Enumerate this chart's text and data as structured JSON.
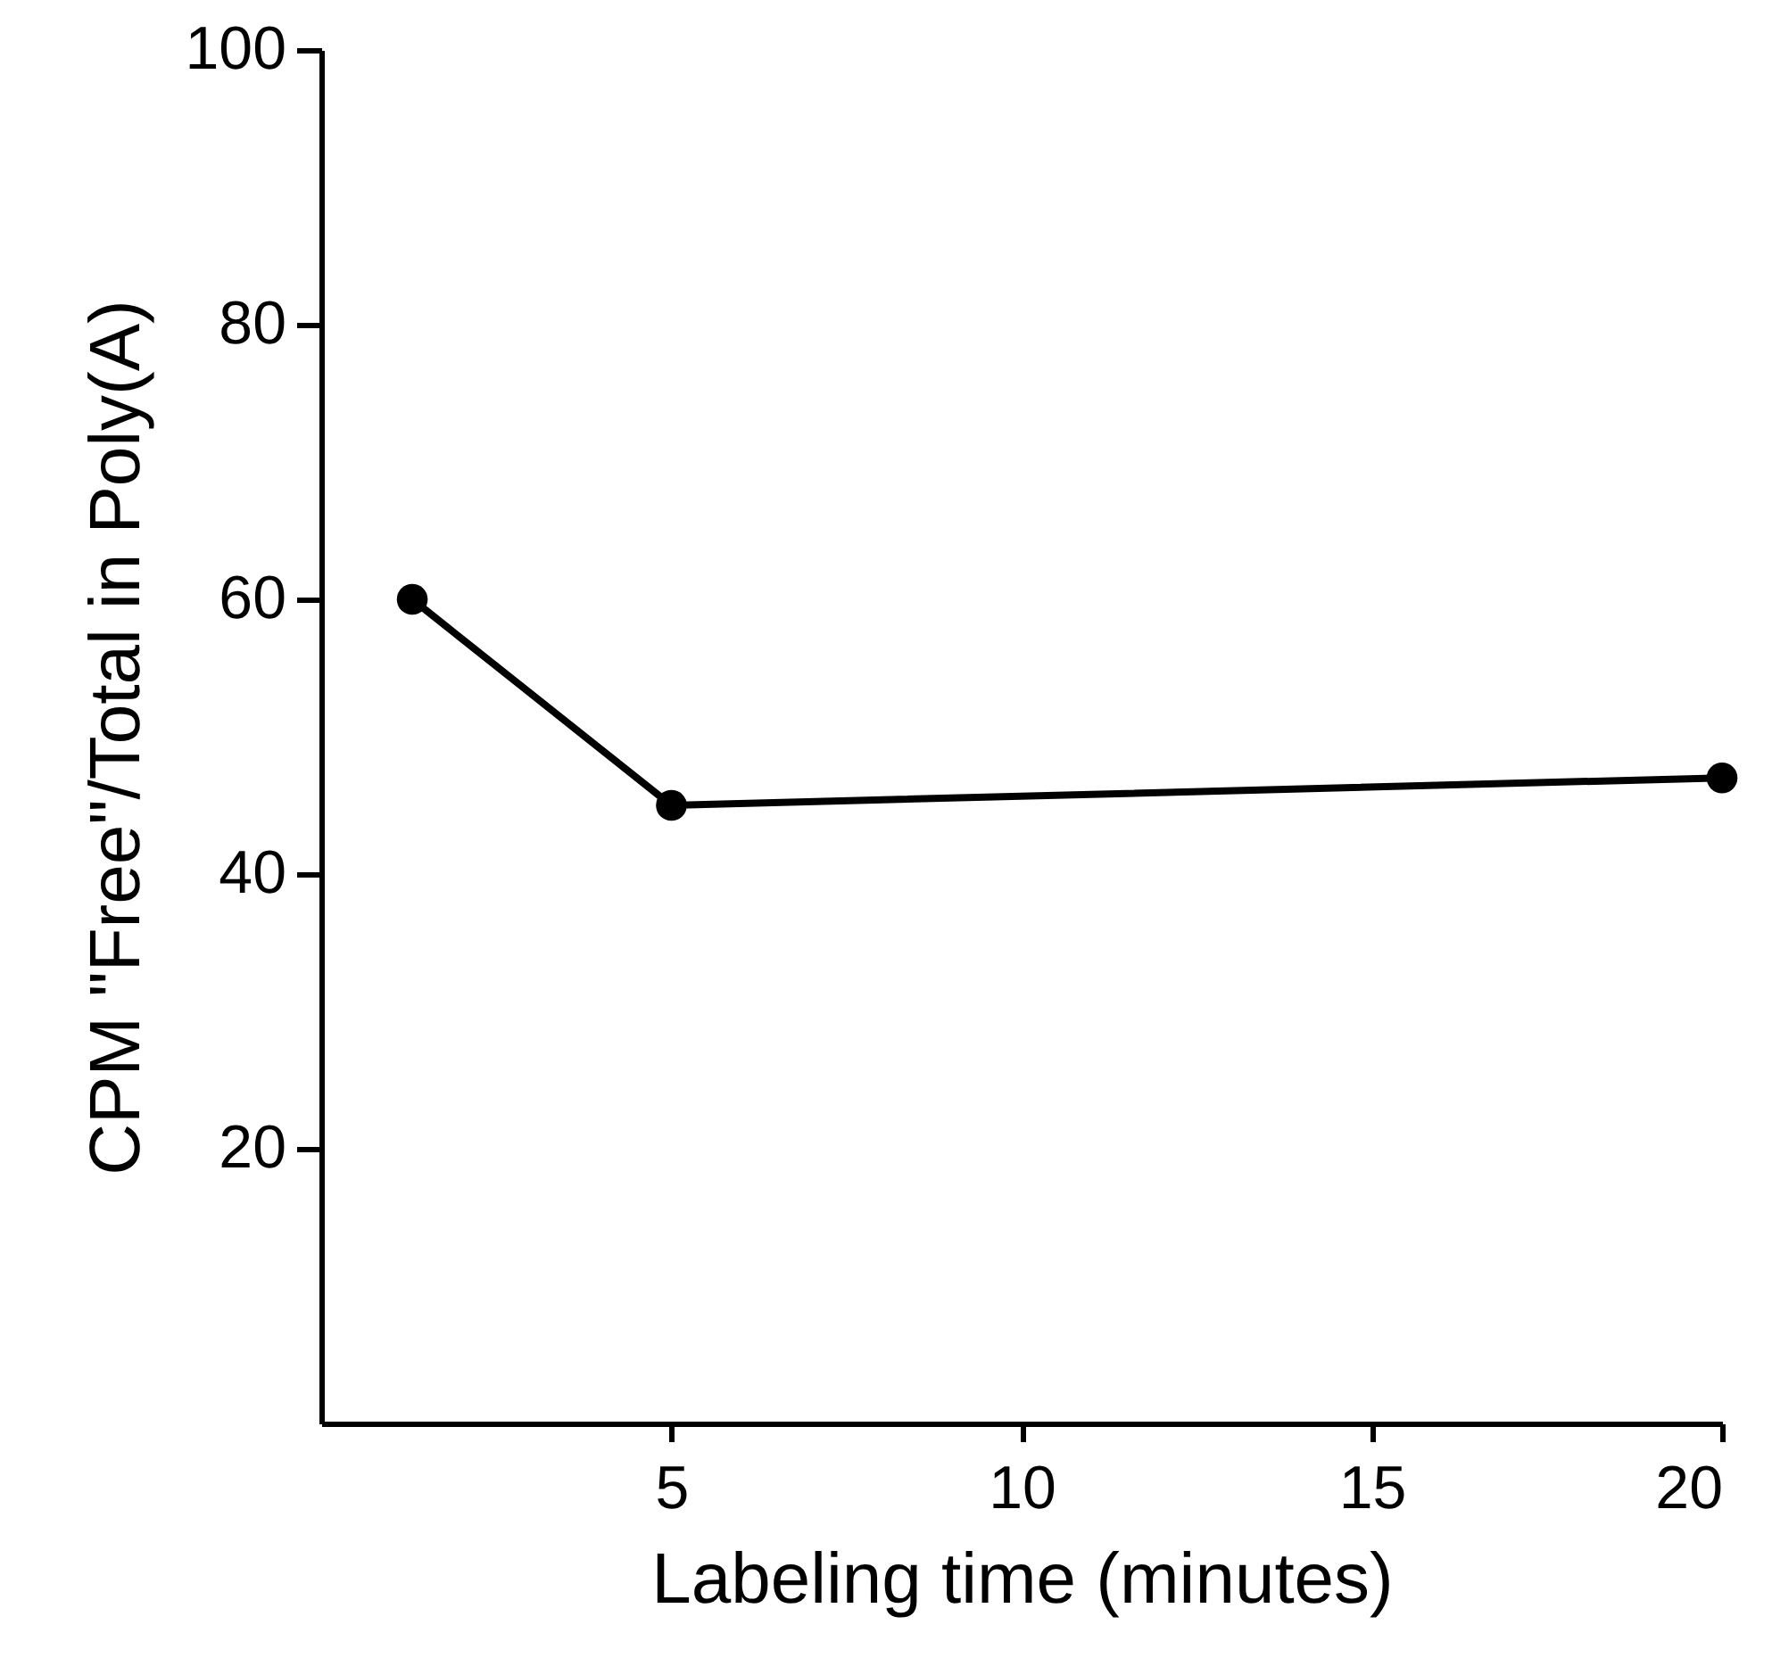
{
  "chart_data": {
    "type": "line",
    "xlabel": "Labeling time (minutes)",
    "ylabel": "CPM \"Free\"/Total in Poly(A)",
    "x": [
      1.3,
      5,
      20
    ],
    "series": [
      {
        "color": "#000000",
        "values": [
          60,
          45,
          47
        ]
      }
    ],
    "xlim": [
      0,
      20
    ],
    "xticks": [
      5,
      10,
      15,
      20
    ],
    "ylim": [
      0,
      100
    ],
    "yticks": [
      20,
      40,
      60,
      80,
      100
    ],
    "grid": false,
    "marker": "circle",
    "line_style": "solid"
  }
}
